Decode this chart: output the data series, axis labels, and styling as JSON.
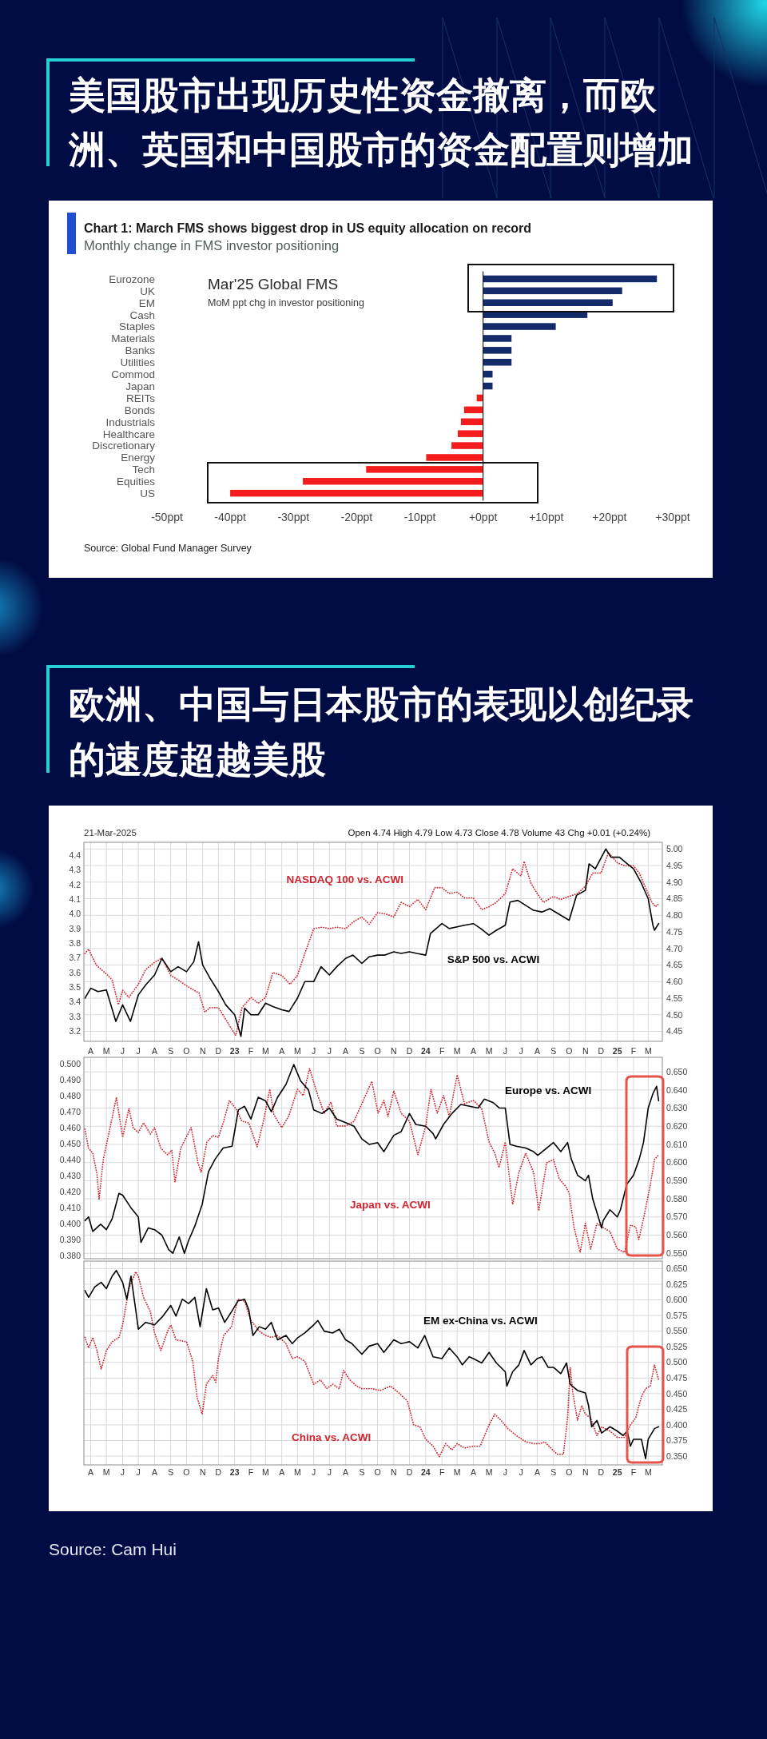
{
  "chart_data": [
    {
      "type": "bar",
      "orientation": "horizontal",
      "title": "美国股市出现历史性资金撤离，而欧洲、英国和中国股市的资金配置则增加",
      "subtitle": "Chart 1: March FMS shows biggest drop in US equity allocation on record",
      "annotations": [
        "Monthly change in FMS investor positioning",
        "Mar'25 Global FMS",
        "MoM ppt chg in investor positioning",
        "Source: Global Fund Manager Survey"
      ],
      "categories": [
        "Eurozone",
        "UK",
        "EM",
        "Cash",
        "Staples",
        "Materials",
        "Banks",
        "Utilities",
        "Commod",
        "Japan",
        "REITs",
        "Bonds",
        "Industrials",
        "Healthcare",
        "Discretionary",
        "Energy",
        "Tech",
        "Equities",
        "US"
      ],
      "values": [
        27.5,
        22,
        20.5,
        16.5,
        11.5,
        4.5,
        4.5,
        4.5,
        1.5,
        1.5,
        -1,
        -3,
        -3.5,
        -4,
        -5,
        -9,
        -18.5,
        -28.5,
        -40
      ],
      "colors": [
        "#132a6b",
        "#132a6b",
        "#132a6b",
        "#132a6b",
        "#132a6b",
        "#132a6b",
        "#132a6b",
        "#132a6b",
        "#132a6b",
        "#132a6b",
        "#f41c1c",
        "#f41c1c",
        "#f41c1c",
        "#f41c1c",
        "#f41c1c",
        "#f41c1c",
        "#f41c1c",
        "#f41c1c",
        "#f41c1c"
      ],
      "xlim": [
        -50,
        30
      ],
      "xticks": [
        {
          "value": -50,
          "label": "-50ppt"
        },
        {
          "value": -40,
          "label": "-40ppt"
        },
        {
          "value": -30,
          "label": "-30ppt"
        },
        {
          "value": -20,
          "label": "-20ppt"
        },
        {
          "value": -10,
          "label": "-10ppt"
        },
        {
          "value": 0,
          "label": "+0ppt"
        },
        {
          "value": 10,
          "label": "+10ppt"
        },
        {
          "value": 20,
          "label": "+20ppt"
        },
        {
          "value": 30,
          "label": "+30ppt"
        }
      ]
    },
    {
      "type": "line",
      "title": "欧洲、中国与日本股市的表现以创纪录的速度超越美股",
      "annotations": [
        "21-Mar-2025",
        "Open 4.74 High 4.79 Low 4.73 Close 4.78 Volume 43 Chg +0.01 (+0.24%)"
      ],
      "grid": true,
      "xlim": [
        "2022-03-19",
        "2025-03-28"
      ],
      "xticks": [
        {
          "value": "2022-04-01",
          "label": "A"
        },
        {
          "value": "2022-05-01",
          "label": "M"
        },
        {
          "value": "2022-06-01",
          "label": "J"
        },
        {
          "value": "2022-07-01",
          "label": "J"
        },
        {
          "value": "2022-08-01",
          "label": "A"
        },
        {
          "value": "2022-09-01",
          "label": "S"
        },
        {
          "value": "2022-10-01",
          "label": "O"
        },
        {
          "value": "2022-11-01",
          "label": "N"
        },
        {
          "value": "2022-12-01",
          "label": "D"
        },
        {
          "value": "2023-01-01",
          "label": "23"
        },
        {
          "value": "2023-02-01",
          "label": "F"
        },
        {
          "value": "2023-03-01",
          "label": "M"
        },
        {
          "value": "2023-04-01",
          "label": "A"
        },
        {
          "value": "2023-05-01",
          "label": "M"
        },
        {
          "value": "2023-06-01",
          "label": "J"
        },
        {
          "value": "2023-07-01",
          "label": "J"
        },
        {
          "value": "2023-08-01",
          "label": "A"
        },
        {
          "value": "2023-09-01",
          "label": "S"
        },
        {
          "value": "2023-10-01",
          "label": "O"
        },
        {
          "value": "2023-11-01",
          "label": "N"
        },
        {
          "value": "2023-12-01",
          "label": "D"
        },
        {
          "value": "2024-01-01",
          "label": "24"
        },
        {
          "value": "2024-02-01",
          "label": "F"
        },
        {
          "value": "2024-03-01",
          "label": "M"
        },
        {
          "value": "2024-04-01",
          "label": "A"
        },
        {
          "value": "2024-05-01",
          "label": "M"
        },
        {
          "value": "2024-06-01",
          "label": "J"
        },
        {
          "value": "2024-07-01",
          "label": "J"
        },
        {
          "value": "2024-08-01",
          "label": "A"
        },
        {
          "value": "2024-09-01",
          "label": "S"
        },
        {
          "value": "2024-10-01",
          "label": "O"
        },
        {
          "value": "2024-11-01",
          "label": "N"
        },
        {
          "value": "2024-12-01",
          "label": "D"
        },
        {
          "value": "2025-01-01",
          "label": "25"
        },
        {
          "value": "2025-02-01",
          "label": "F"
        },
        {
          "value": "2025-03-01",
          "label": "M"
        }
      ],
      "ylim": [
        3.13,
        4.49
      ],
      "yticks": [
        3.2,
        3.3,
        3.4,
        3.5,
        3.6,
        3.7,
        3.8,
        3.9,
        {
          "value": 4,
          "label": "4.0"
        },
        4.1,
        4.2,
        4.3,
        4.4
      ],
      "y2lim": [
        4.42,
        5.02
      ],
      "y2ticks": [
        4.45,
        {
          "value": 4.5,
          "label": "4.50"
        },
        4.55,
        {
          "value": 4.6,
          "label": "4.60"
        },
        4.65,
        {
          "value": 4.7,
          "label": "4.70"
        },
        4.75,
        {
          "value": 4.8,
          "label": "4.80"
        },
        4.85,
        {
          "value": 4.9,
          "label": "4.90"
        },
        4.95,
        {
          "value": 5,
          "label": "5.00"
        }
      ],
      "series": [
        {
          "name": "NASDAQ 100 vs. ACWI",
          "color": "#d0242f",
          "line_style": "dotted",
          "x": [
            "2022-03-21",
            "2022-03-28",
            "2022-04-01",
            "2022-04-12",
            "2022-05-01",
            "2022-05-12",
            "2022-05-24",
            "2022-06-01",
            "2022-06-13",
            "2022-07-01",
            "2022-07-15",
            "2022-08-01",
            "2022-08-15",
            "2022-09-01",
            "2022-09-15",
            "2022-10-01",
            "2022-10-15",
            "2022-10-25",
            "2022-11-05",
            "2022-11-15",
            "2022-12-01",
            "2022-12-15",
            "2023-01-03",
            "2023-01-15",
            "2023-02-01",
            "2023-02-15",
            "2023-03-01",
            "2023-03-15",
            "2023-04-01",
            "2023-04-17",
            "2023-05-01",
            "2023-05-15",
            "2023-06-01",
            "2023-06-17",
            "2023-07-01",
            "2023-07-15",
            "2023-08-01",
            "2023-08-17",
            "2023-09-01",
            "2023-09-15",
            "2023-10-01",
            "2023-10-17",
            "2023-11-01",
            "2023-11-15",
            "2023-12-01",
            "2023-12-17",
            "2024-01-01",
            "2024-01-18",
            "2024-02-01",
            "2024-02-15",
            "2024-03-01",
            "2024-03-15",
            "2024-04-01",
            "2024-04-17",
            "2024-05-01",
            "2024-05-15",
            "2024-06-01",
            "2024-06-15",
            "2024-07-01",
            "2024-07-07",
            "2024-07-20",
            "2024-08-01",
            "2024-08-13",
            "2024-09-01",
            "2024-09-15",
            "2024-10-01",
            "2024-10-17",
            "2024-11-01",
            "2024-11-15",
            "2024-12-01",
            "2024-12-15",
            "2025-01-01",
            "2025-01-15",
            "2025-02-01",
            "2025-02-12",
            "2025-02-24",
            "2025-03-08",
            "2025-03-15",
            "2025-03-21"
          ],
          "values": [
            3.73,
            3.76,
            3.73,
            3.65,
            3.59,
            3.55,
            3.38,
            3.48,
            3.43,
            3.52,
            3.62,
            3.67,
            3.7,
            3.58,
            3.55,
            3.51,
            3.48,
            3.46,
            3.33,
            3.36,
            3.36,
            3.28,
            3.17,
            3.36,
            3.43,
            3.39,
            3.43,
            3.6,
            3.58,
            3.52,
            3.58,
            3.73,
            3.9,
            3.91,
            3.9,
            3.91,
            3.9,
            3.95,
            3.98,
            3.93,
            4.01,
            4.0,
            3.98,
            4.08,
            4.05,
            4.1,
            4.03,
            4.18,
            4.18,
            4.14,
            4.15,
            4.11,
            4.11,
            4.03,
            4.05,
            4.08,
            4.14,
            4.31,
            4.26,
            4.36,
            4.21,
            4.14,
            4.08,
            4.12,
            4.1,
            4.12,
            4.14,
            4.19,
            4.28,
            4.28,
            4.42,
            4.35,
            4.33,
            4.33,
            4.28,
            4.18,
            4.08,
            4.05,
            4.07
          ]
        },
        {
          "name": "S&P 500 vs. ACWI",
          "color": "#000000",
          "axis": "y2",
          "x": [
            "2022-03-21",
            "2022-04-01",
            "2022-04-15",
            "2022-05-01",
            "2022-05-19",
            "2022-06-01",
            "2022-06-16",
            "2022-07-01",
            "2022-07-15",
            "2022-08-01",
            "2022-08-15",
            "2022-09-01",
            "2022-09-15",
            "2022-10-01",
            "2022-10-15",
            "2022-10-24",
            "2022-11-01",
            "2022-11-15",
            "2022-12-01",
            "2022-12-15",
            "2023-01-01",
            "2023-01-13",
            "2023-01-20",
            "2023-02-01",
            "2023-02-15",
            "2023-03-01",
            "2023-03-15",
            "2023-04-01",
            "2023-04-15",
            "2023-05-01",
            "2023-05-15",
            "2023-06-01",
            "2023-06-15",
            "2023-07-01",
            "2023-07-15",
            "2023-08-01",
            "2023-08-15",
            "2023-09-01",
            "2023-09-15",
            "2023-10-01",
            "2023-10-15",
            "2023-11-01",
            "2023-11-15",
            "2023-12-01",
            "2023-12-15",
            "2024-01-01",
            "2024-01-10",
            "2024-02-01",
            "2024-02-15",
            "2024-03-01",
            "2024-03-15",
            "2024-04-01",
            "2024-04-15",
            "2024-05-01",
            "2024-05-15",
            "2024-06-01",
            "2024-06-10",
            "2024-06-25",
            "2024-07-10",
            "2024-07-25",
            "2024-08-10",
            "2024-08-25",
            "2024-09-15",
            "2024-10-01",
            "2024-10-15",
            "2024-11-01",
            "2024-11-08",
            "2024-11-20",
            "2024-12-10",
            "2024-12-20",
            "2025-01-05",
            "2025-01-20",
            "2025-02-01",
            "2025-02-15",
            "2025-03-01",
            "2025-03-10",
            "2025-03-13",
            "2025-03-21"
          ],
          "values": [
            4.55,
            4.58,
            4.57,
            4.575,
            4.48,
            4.53,
            4.48,
            4.56,
            4.59,
            4.62,
            4.67,
            4.63,
            4.645,
            4.63,
            4.66,
            4.72,
            4.65,
            4.61,
            4.57,
            4.53,
            4.5,
            4.435,
            4.52,
            4.5,
            4.5,
            4.535,
            4.525,
            4.515,
            4.51,
            4.55,
            4.6,
            4.6,
            4.645,
            4.62,
            4.645,
            4.67,
            4.68,
            4.655,
            4.675,
            4.68,
            4.68,
            4.69,
            4.685,
            4.69,
            4.685,
            4.68,
            4.745,
            4.775,
            4.76,
            4.765,
            4.77,
            4.775,
            4.76,
            4.74,
            4.755,
            4.77,
            4.84,
            4.845,
            4.83,
            4.815,
            4.81,
            4.82,
            4.8,
            4.785,
            4.86,
            4.875,
            4.955,
            4.94,
            5.0,
            4.975,
            4.975,
            4.955,
            4.94,
            4.9,
            4.85,
            4.77,
            4.755,
            4.775
          ]
        }
      ]
    },
    {
      "type": "line",
      "grid": true,
      "tick_labels": "y",
      "xlim": [
        "2022-03-19",
        "2025-03-28"
      ],
      "xticks": [
        {
          "value": "2022-04-01",
          "label": null
        },
        {
          "value": "2022-05-01",
          "label": null
        },
        {
          "value": "2022-06-01",
          "label": null
        },
        {
          "value": "2022-07-01",
          "label": null
        },
        {
          "value": "2022-08-01",
          "label": null
        },
        {
          "value": "2022-09-01",
          "label": null
        },
        {
          "value": "2022-10-01",
          "label": null
        },
        {
          "value": "2022-11-01",
          "label": null
        },
        {
          "value": "2022-12-01",
          "label": null
        },
        {
          "value": "2023-01-01",
          "label": null
        },
        {
          "value": "2023-02-01",
          "label": null
        },
        {
          "value": "2023-03-01",
          "label": null
        },
        {
          "value": "2023-04-01",
          "label": null
        },
        {
          "value": "2023-05-01",
          "label": null
        },
        {
          "value": "2023-06-01",
          "label": null
        },
        {
          "value": "2023-07-01",
          "label": null
        },
        {
          "value": "2023-08-01",
          "label": null
        },
        {
          "value": "2023-09-01",
          "label": null
        },
        {
          "value": "2023-10-01",
          "label": null
        },
        {
          "value": "2023-11-01",
          "label": null
        },
        {
          "value": "2023-12-01",
          "label": null
        },
        {
          "value": "2024-01-01",
          "label": null
        },
        {
          "value": "2024-02-01",
          "label": null
        },
        {
          "value": "2024-03-01",
          "label": null
        },
        {
          "value": "2024-04-01",
          "label": null
        },
        {
          "value": "2024-05-01",
          "label": null
        },
        {
          "value": "2024-06-01",
          "label": null
        },
        {
          "value": "2024-07-01",
          "label": null
        },
        {
          "value": "2024-08-01",
          "label": null
        },
        {
          "value": "2024-09-01",
          "label": null
        },
        {
          "value": "2024-10-01",
          "label": null
        },
        {
          "value": "2024-11-01",
          "label": null
        },
        {
          "value": "2024-12-01",
          "label": null
        },
        {
          "value": "2025-01-01",
          "label": null
        },
        {
          "value": "2025-02-01",
          "label": null
        },
        {
          "value": "2025-03-01",
          "label": null
        }
      ],
      "ylim": [
        0.378,
        0.504
      ],
      "yticks": [
        {
          "value": 0.38,
          "label": "0.380"
        },
        {
          "value": 0.39,
          "label": "0.390"
        },
        {
          "value": 0.4,
          "label": "0.400"
        },
        {
          "value": 0.41,
          "label": "0.410"
        },
        {
          "value": 0.42,
          "label": "0.420"
        },
        {
          "value": 0.43,
          "label": "0.430"
        },
        {
          "value": 0.44,
          "label": "0.440"
        },
        {
          "value": 0.45,
          "label": "0.450"
        },
        {
          "value": 0.46,
          "label": "0.460"
        },
        {
          "value": 0.47,
          "label": "0.470"
        },
        {
          "value": 0.48,
          "label": "0.480"
        },
        {
          "value": 0.49,
          "label": "0.490"
        },
        {
          "value": 0.5,
          "label": "0.500"
        }
      ],
      "y2lim": [
        0.547,
        0.658
      ],
      "y2ticks": [
        {
          "value": 0.55,
          "label": "0.550"
        },
        {
          "value": 0.56,
          "label": "0.560"
        },
        {
          "value": 0.57,
          "label": "0.570"
        },
        {
          "value": 0.58,
          "label": "0.580"
        },
        {
          "value": 0.59,
          "label": "0.590"
        },
        {
          "value": 0.6,
          "label": "0.600"
        },
        {
          "value": 0.61,
          "label": "0.610"
        },
        {
          "value": 0.62,
          "label": "0.620"
        },
        {
          "value": 0.63,
          "label": "0.630"
        },
        {
          "value": 0.64,
          "label": "0.640"
        },
        {
          "value": 0.65,
          "label": "0.650"
        }
      ],
      "series": [
        {
          "name": "Japan vs. ACWI",
          "color": "#d0242f",
          "line_style": "dotted",
          "x": [
            "2022-03-21",
            "2022-03-28",
            "2022-04-05",
            "2022-04-13",
            "2022-04-17",
            "2022-04-25",
            "2022-05-08",
            "2022-05-20",
            "2022-06-01",
            "2022-06-13",
            "2022-06-21",
            "2022-07-01",
            "2022-07-11",
            "2022-07-24",
            "2022-08-01",
            "2022-08-13",
            "2022-08-26",
            "2022-09-03",
            "2022-09-09",
            "2022-09-20",
            "2022-10-02",
            "2022-10-10",
            "2022-10-23",
            "2022-10-29",
            "2022-11-09",
            "2022-11-20",
            "2022-12-01",
            "2022-12-11",
            "2022-12-22",
            "2023-01-03",
            "2023-01-15",
            "2023-01-28",
            "2023-02-13",
            "2023-02-25",
            "2023-03-09",
            "2023-03-17",
            "2023-04-01",
            "2023-04-14",
            "2023-05-01",
            "2023-05-12",
            "2023-05-24",
            "2023-06-09",
            "2023-06-21",
            "2023-07-04",
            "2023-07-15",
            "2023-08-01",
            "2023-08-17",
            "2023-09-01",
            "2023-09-20",
            "2023-10-02",
            "2023-10-13",
            "2023-10-21",
            "2023-11-01",
            "2023-11-15",
            "2023-12-01",
            "2023-12-17",
            "2024-01-01",
            "2024-01-11",
            "2024-01-23",
            "2024-02-04",
            "2024-02-15",
            "2024-03-01",
            "2024-03-15",
            "2024-04-01",
            "2024-04-17",
            "2024-05-01",
            "2024-05-12",
            "2024-05-20",
            "2024-06-01",
            "2024-06-15",
            "2024-06-27",
            "2024-07-10",
            "2024-07-25",
            "2024-08-04",
            "2024-08-19",
            "2024-09-01",
            "2024-09-12",
            "2024-09-25",
            "2024-10-01",
            "2024-10-10",
            "2024-10-22",
            "2024-11-01",
            "2024-11-11",
            "2024-11-23",
            "2024-12-02",
            "2024-12-18",
            "2025-01-01",
            "2025-01-15",
            "2025-01-26",
            "2025-02-05",
            "2025-02-11",
            "2025-02-20",
            "2025-03-05",
            "2025-03-13",
            "2025-03-21"
          ],
          "values": [
            0.459,
            0.447,
            0.444,
            0.431,
            0.415,
            0.44,
            0.46,
            0.479,
            0.454,
            0.472,
            0.46,
            0.457,
            0.463,
            0.456,
            0.46,
            0.447,
            0.443,
            0.446,
            0.426,
            0.447,
            0.455,
            0.46,
            0.438,
            0.432,
            0.451,
            0.455,
            0.454,
            0.464,
            0.477,
            0.472,
            0.464,
            0.463,
            0.448,
            0.464,
            0.484,
            0.468,
            0.46,
            0.467,
            0.484,
            0.48,
            0.497,
            0.48,
            0.469,
            0.476,
            0.461,
            0.461,
            0.464,
            0.475,
            0.489,
            0.469,
            0.477,
            0.467,
            0.483,
            0.469,
            0.464,
            0.443,
            0.461,
            0.484,
            0.469,
            0.48,
            0.467,
            0.493,
            0.475,
            0.477,
            0.472,
            0.451,
            0.444,
            0.435,
            0.451,
            0.412,
            0.432,
            0.444,
            0.432,
            0.408,
            0.438,
            0.44,
            0.428,
            0.423,
            0.419,
            0.398,
            0.382,
            0.4,
            0.384,
            0.4,
            0.398,
            0.395,
            0.384,
            0.382,
            0.399,
            0.398,
            0.39,
            0.403,
            0.424,
            0.44,
            0.443
          ]
        },
        {
          "name": "Europe vs. ACWI",
          "color": "#000000",
          "axis": "y2",
          "x": [
            "2022-03-21",
            "2022-03-28",
            "2022-04-05",
            "2022-04-20",
            "2022-05-01",
            "2022-05-12",
            "2022-05-25",
            "2022-06-01",
            "2022-06-17",
            "2022-07-01",
            "2022-07-06",
            "2022-07-20",
            "2022-08-01",
            "2022-08-15",
            "2022-08-28",
            "2022-09-05",
            "2022-09-17",
            "2022-09-27",
            "2022-10-05",
            "2022-10-17",
            "2022-10-31",
            "2022-11-12",
            "2022-11-25",
            "2022-12-10",
            "2022-12-27",
            "2023-01-08",
            "2023-01-20",
            "2023-02-01",
            "2023-02-15",
            "2023-03-01",
            "2023-03-12",
            "2023-03-24",
            "2023-04-09",
            "2023-04-24",
            "2023-05-07",
            "2023-05-22",
            "2023-06-01",
            "2023-06-17",
            "2023-07-01",
            "2023-07-15",
            "2023-08-01",
            "2023-08-17",
            "2023-09-01",
            "2023-09-15",
            "2023-10-01",
            "2023-10-13",
            "2023-11-01",
            "2023-11-15",
            "2023-12-01",
            "2023-12-13",
            "2024-01-01",
            "2024-01-15",
            "2024-01-20",
            "2024-02-04",
            "2024-02-20",
            "2024-03-08",
            "2024-03-25",
            "2024-04-10",
            "2024-04-22",
            "2024-05-09",
            "2024-05-21",
            "2024-06-01",
            "2024-06-10",
            "2024-06-22",
            "2024-07-10",
            "2024-07-25",
            "2024-08-02",
            "2024-08-19",
            "2024-09-01",
            "2024-09-15",
            "2024-09-28",
            "2024-10-05",
            "2024-10-17",
            "2024-11-01",
            "2024-11-07",
            "2024-11-15",
            "2024-12-02",
            "2024-12-05",
            "2024-12-18",
            "2025-01-01",
            "2025-01-07",
            "2025-01-19",
            "2025-02-01",
            "2025-02-12",
            "2025-02-20",
            "2025-03-01",
            "2025-03-10",
            "2025-03-17",
            "2025-03-21"
          ],
          "values": [
            0.568,
            0.57,
            0.562,
            0.566,
            0.563,
            0.569,
            0.583,
            0.582,
            0.575,
            0.57,
            0.556,
            0.564,
            0.563,
            0.56,
            0.552,
            0.55,
            0.559,
            0.55,
            0.557,
            0.565,
            0.577,
            0.595,
            0.602,
            0.608,
            0.609,
            0.629,
            0.631,
            0.624,
            0.636,
            0.634,
            0.628,
            0.636,
            0.643,
            0.654,
            0.645,
            0.64,
            0.629,
            0.627,
            0.63,
            0.624,
            0.622,
            0.62,
            0.613,
            0.61,
            0.611,
            0.606,
            0.615,
            0.617,
            0.627,
            0.621,
            0.62,
            0.616,
            0.613,
            0.621,
            0.627,
            0.632,
            0.631,
            0.63,
            0.635,
            0.633,
            0.63,
            0.63,
            0.61,
            0.609,
            0.608,
            0.606,
            0.604,
            0.608,
            0.611,
            0.606,
            0.611,
            0.602,
            0.593,
            0.59,
            0.593,
            0.58,
            0.564,
            0.568,
            0.574,
            0.57,
            0.574,
            0.588,
            0.593,
            0.602,
            0.611,
            0.63,
            0.638,
            0.642,
            0.634
          ]
        }
      ]
    },
    {
      "type": "line",
      "grid": true,
      "annotations": [
        "Source: Cam Hui"
      ],
      "xlim": [
        "2022-03-19",
        "2025-03-28"
      ],
      "xticks": [
        {
          "value": "2022-04-01",
          "label": "A"
        },
        {
          "value": "2022-05-01",
          "label": "M"
        },
        {
          "value": "2022-06-01",
          "label": "J"
        },
        {
          "value": "2022-07-01",
          "label": "J"
        },
        {
          "value": "2022-08-01",
          "label": "A"
        },
        {
          "value": "2022-09-01",
          "label": "S"
        },
        {
          "value": "2022-10-01",
          "label": "O"
        },
        {
          "value": "2022-11-01",
          "label": "N"
        },
        {
          "value": "2022-12-01",
          "label": "D"
        },
        {
          "value": "2023-01-01",
          "label": "23"
        },
        {
          "value": "2023-02-01",
          "label": "F"
        },
        {
          "value": "2023-03-01",
          "label": "M"
        },
        {
          "value": "2023-04-01",
          "label": "A"
        },
        {
          "value": "2023-05-01",
          "label": "M"
        },
        {
          "value": "2023-06-01",
          "label": "J"
        },
        {
          "value": "2023-07-01",
          "label": "J"
        },
        {
          "value": "2023-08-01",
          "label": "A"
        },
        {
          "value": "2023-09-01",
          "label": "S"
        },
        {
          "value": "2023-10-01",
          "label": "O"
        },
        {
          "value": "2023-11-01",
          "label": "N"
        },
        {
          "value": "2023-12-01",
          "label": "D"
        },
        {
          "value": "2024-01-01",
          "label": "24"
        },
        {
          "value": "2024-02-01",
          "label": "F"
        },
        {
          "value": "2024-03-01",
          "label": "M"
        },
        {
          "value": "2024-04-01",
          "label": "A"
        },
        {
          "value": "2024-05-01",
          "label": "M"
        },
        {
          "value": "2024-06-01",
          "label": "J"
        },
        {
          "value": "2024-07-01",
          "label": "J"
        },
        {
          "value": "2024-08-01",
          "label": "A"
        },
        {
          "value": "2024-09-01",
          "label": "S"
        },
        {
          "value": "2024-10-01",
          "label": "O"
        },
        {
          "value": "2024-11-01",
          "label": "N"
        },
        {
          "value": "2024-12-01",
          "label": "D"
        },
        {
          "value": "2025-01-01",
          "label": "25"
        },
        {
          "value": "2025-02-01",
          "label": "F"
        },
        {
          "value": "2025-03-01",
          "label": "M"
        }
      ],
      "ylim": [
        0.336,
        0.662
      ],
      "yticks": [
        {
          "value": 0.35,
          "label": "0.350"
        },
        0.375,
        {
          "value": 0.4,
          "label": "0.400"
        },
        0.425,
        {
          "value": 0.45,
          "label": "0.450"
        },
        0.475,
        {
          "value": 0.5,
          "label": "0.500"
        },
        0.525,
        {
          "value": 0.55,
          "label": "0.550"
        },
        0.575,
        {
          "value": 0.6,
          "label": "0.600"
        },
        0.625,
        {
          "value": 0.65,
          "label": "0.650"
        }
      ],
      "series": [
        {
          "name": "China vs. ACWI",
          "color": "#d0242f",
          "line_style": "dotted",
          "x": [
            "2022-03-21",
            "2022-03-28",
            "2022-04-05",
            "2022-04-13",
            "2022-04-21",
            "2022-05-01",
            "2022-05-12",
            "2022-05-25",
            "2022-06-01",
            "2022-06-13",
            "2022-06-26",
            "2022-07-01",
            "2022-07-11",
            "2022-07-24",
            "2022-08-01",
            "2022-08-13",
            "2022-08-26",
            "2022-09-01",
            "2022-09-11",
            "2022-10-01",
            "2022-10-13",
            "2022-10-21",
            "2022-10-31",
            "2022-11-08",
            "2022-11-20",
            "2022-11-26",
            "2022-12-01",
            "2022-12-11",
            "2022-12-26",
            "2023-01-07",
            "2023-01-20",
            "2023-02-01",
            "2023-02-17",
            "2023-03-01",
            "2023-03-12",
            "2023-03-24",
            "2023-04-09",
            "2023-04-21",
            "2023-05-01",
            "2023-05-15",
            "2023-06-01",
            "2023-06-14",
            "2023-06-26",
            "2023-07-07",
            "2023-07-20",
            "2023-07-28",
            "2023-08-09",
            "2023-08-22",
            "2023-09-01",
            "2023-09-20",
            "2023-10-06",
            "2023-10-26",
            "2023-11-11",
            "2023-11-27",
            "2023-12-09",
            "2023-12-21",
            "2024-01-01",
            "2024-01-15",
            "2024-01-27",
            "2024-02-08",
            "2024-02-20",
            "2024-03-01",
            "2024-03-15",
            "2024-04-01",
            "2024-04-14",
            "2024-05-01",
            "2024-05-12",
            "2024-05-24",
            "2024-06-06",
            "2024-06-22",
            "2024-07-10",
            "2024-07-25",
            "2024-08-07",
            "2024-08-15",
            "2024-08-27",
            "2024-09-08",
            "2024-09-20",
            "2024-09-28",
            "2024-10-03",
            "2024-10-08",
            "2024-10-17",
            "2024-10-25",
            "2024-11-01",
            "2024-11-11",
            "2024-11-23",
            "2024-12-02",
            "2024-12-18",
            "2025-01-01",
            "2025-01-15",
            "2025-01-26",
            "2025-02-05",
            "2025-02-16",
            "2025-02-24",
            "2025-03-05",
            "2025-03-13",
            "2025-03-21"
          ],
          "values": [
            0.54,
            0.523,
            0.54,
            0.519,
            0.489,
            0.519,
            0.533,
            0.54,
            0.56,
            0.618,
            0.645,
            0.638,
            0.604,
            0.581,
            0.547,
            0.519,
            0.55,
            0.56,
            0.536,
            0.533,
            0.502,
            0.445,
            0.417,
            0.465,
            0.479,
            0.468,
            0.506,
            0.543,
            0.557,
            0.601,
            0.598,
            0.567,
            0.55,
            0.543,
            0.54,
            0.543,
            0.53,
            0.506,
            0.509,
            0.502,
            0.465,
            0.472,
            0.458,
            0.465,
            0.458,
            0.487,
            0.472,
            0.462,
            0.458,
            0.458,
            0.455,
            0.462,
            0.451,
            0.438,
            0.4,
            0.397,
            0.377,
            0.366,
            0.349,
            0.37,
            0.36,
            0.37,
            0.363,
            0.366,
            0.366,
            0.4,
            0.417,
            0.407,
            0.394,
            0.383,
            0.373,
            0.37,
            0.37,
            0.373,
            0.363,
            0.353,
            0.353,
            0.411,
            0.492,
            0.451,
            0.407,
            0.431,
            0.417,
            0.411,
            0.383,
            0.397,
            0.39,
            0.38,
            0.38,
            0.4,
            0.411,
            0.445,
            0.458,
            0.462,
            0.496,
            0.472
          ]
        },
        {
          "name": "EM ex-China vs. ACWI",
          "color": "#000000",
          "x": [
            "2022-03-21",
            "2022-03-28",
            "2022-04-09",
            "2022-04-21",
            "2022-05-01",
            "2022-05-12",
            "2022-05-20",
            "2022-06-01",
            "2022-06-09",
            "2022-06-17",
            "2022-06-26",
            "2022-07-01",
            "2022-07-15",
            "2022-08-01",
            "2022-08-17",
            "2022-09-01",
            "2022-09-11",
            "2022-09-23",
            "2022-10-05",
            "2022-10-17",
            "2022-10-27",
            "2022-11-08",
            "2022-11-20",
            "2022-12-01",
            "2022-12-13",
            "2022-12-26",
            "2023-01-07",
            "2023-01-20",
            "2023-01-28",
            "2023-02-05",
            "2023-02-17",
            "2023-03-01",
            "2023-03-12",
            "2023-03-24",
            "2023-04-09",
            "2023-04-21",
            "2023-05-01",
            "2023-05-15",
            "2023-06-01",
            "2023-06-09",
            "2023-06-21",
            "2023-07-07",
            "2023-07-20",
            "2023-08-01",
            "2023-08-13",
            "2023-09-01",
            "2023-09-15",
            "2023-10-01",
            "2023-10-13",
            "2023-11-01",
            "2023-11-15",
            "2023-12-01",
            "2023-12-17",
            "2023-12-30",
            "2024-01-15",
            "2024-02-01",
            "2024-02-15",
            "2024-03-01",
            "2024-03-11",
            "2024-03-24",
            "2024-04-01",
            "2024-04-17",
            "2024-05-01",
            "2024-05-15",
            "2024-06-01",
            "2024-06-04",
            "2024-06-15",
            "2024-06-27",
            "2024-07-07",
            "2024-07-20",
            "2024-08-01",
            "2024-08-10",
            "2024-08-22",
            "2024-09-01",
            "2024-09-15",
            "2024-09-26",
            "2024-10-03",
            "2024-10-17",
            "2024-11-01",
            "2024-11-07",
            "2024-11-13",
            "2024-11-23",
            "2024-12-02",
            "2024-12-18",
            "2025-01-01",
            "2025-01-12",
            "2025-01-20",
            "2025-01-26",
            "2025-02-01",
            "2025-02-16",
            "2025-02-24",
            "2025-03-01",
            "2025-03-13",
            "2025-03-21"
          ],
          "values": [
            0.615,
            0.604,
            0.621,
            0.628,
            0.618,
            0.638,
            0.647,
            0.628,
            0.601,
            0.638,
            0.584,
            0.553,
            0.564,
            0.56,
            0.574,
            0.591,
            0.574,
            0.601,
            0.594,
            0.604,
            0.557,
            0.618,
            0.584,
            0.587,
            0.564,
            0.581,
            0.598,
            0.601,
            0.584,
            0.543,
            0.557,
            0.553,
            0.564,
            0.536,
            0.543,
            0.53,
            0.539,
            0.547,
            0.56,
            0.567,
            0.55,
            0.547,
            0.553,
            0.536,
            0.53,
            0.513,
            0.526,
            0.53,
            0.516,
            0.536,
            0.53,
            0.533,
            0.523,
            0.543,
            0.509,
            0.506,
            0.523,
            0.509,
            0.496,
            0.509,
            0.506,
            0.499,
            0.516,
            0.499,
            0.485,
            0.462,
            0.485,
            0.496,
            0.519,
            0.496,
            0.506,
            0.509,
            0.492,
            0.492,
            0.482,
            0.499,
            0.465,
            0.455,
            0.451,
            0.431,
            0.397,
            0.407,
            0.387,
            0.397,
            0.39,
            0.383,
            0.39,
            0.366,
            0.377,
            0.377,
            0.346,
            0.377,
            0.394,
            0.397
          ]
        }
      ]
    }
  ]
}
